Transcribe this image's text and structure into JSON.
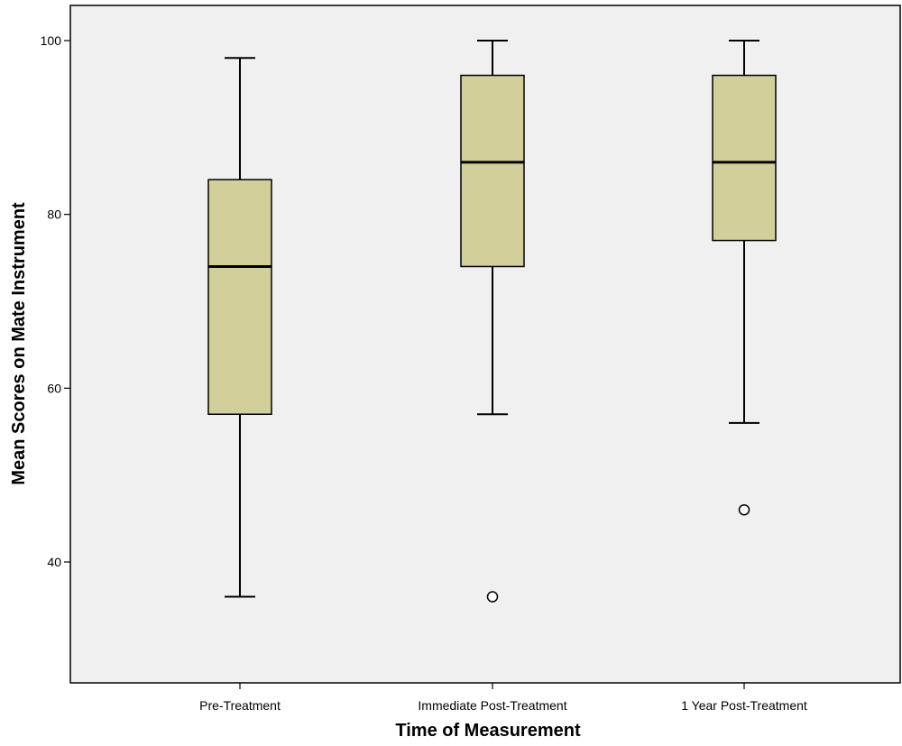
{
  "chart_data": {
    "type": "box",
    "title": "",
    "xlabel": "Time of Measurement",
    "ylabel": "Mean Scores on Mate Instrument",
    "ylim": [
      26,
      104
    ],
    "yticks": [
      40,
      60,
      80,
      100
    ],
    "grid": false,
    "colors": {
      "plot_background": "#f0f0f0",
      "box_fill": "#d3cf9a",
      "stroke": "#000000"
    },
    "categories": [
      "Pre-Treatment",
      "Immediate Post-Treatment",
      "1 Year Post-Treatment"
    ],
    "boxes": [
      {
        "category": "Pre-Treatment",
        "min": 36,
        "q1": 57,
        "median": 74,
        "q3": 84,
        "max": 98,
        "outliers": []
      },
      {
        "category": "Immediate Post-Treatment",
        "min": 57,
        "q1": 74,
        "median": 86,
        "q3": 96,
        "max": 100,
        "outliers": [
          36
        ]
      },
      {
        "category": "1 Year Post-Treatment",
        "min": 56,
        "q1": 77,
        "median": 86,
        "q3": 96,
        "max": 100,
        "outliers": [
          46
        ]
      }
    ]
  }
}
